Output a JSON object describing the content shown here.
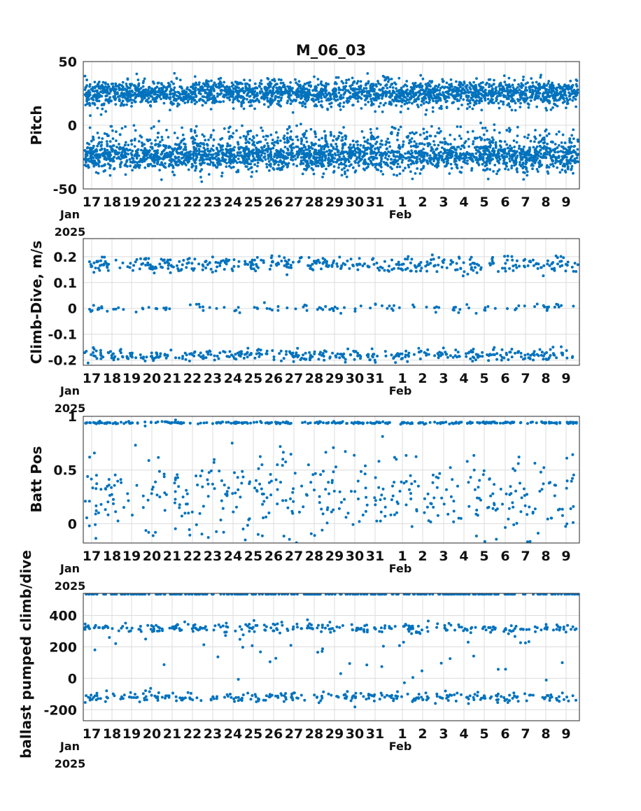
{
  "title": "M_06_03",
  "colors": {
    "marker": "#0072BD",
    "grid": "#dcdcdc",
    "axis": "#262626"
  },
  "chart_data": [
    {
      "type": "scatter",
      "ylabel": "Pitch",
      "ylim": [
        -50,
        50
      ],
      "yticks": [
        50,
        0,
        -50
      ],
      "x_range_days": [
        "2025-01-16 12:00",
        "2025-02-09 18:00"
      ],
      "xticks": [
        "17",
        "18",
        "19",
        "20",
        "21",
        "22",
        "23",
        "24",
        "25",
        "26",
        "27",
        "28",
        "29",
        "30",
        "31",
        "1",
        "2",
        "3",
        "4",
        "5",
        "6",
        "7",
        "8",
        "9"
      ],
      "x_secondary": {
        "Jan": "Jan",
        "Feb": "Feb",
        "year": "2025"
      },
      "grid": true,
      "series": [
        {
          "values_description_clusters": [
            {
              "center": 25,
              "spread": 5,
              "n": 2400
            },
            {
              "center": -24,
              "spread": 6,
              "n": 2400
            },
            {
              "center": -8,
              "spread": 4,
              "n": 250
            }
          ]
        }
      ]
    },
    {
      "type": "scatter",
      "ylabel": "Climb-Dive, m/s",
      "ylim": [
        -0.22,
        0.27
      ],
      "yticks": [
        0.2,
        0.1,
        0,
        -0.1,
        -0.2
      ],
      "grid": true,
      "series": [
        {
          "values_description_clusters": [
            {
              "center": 0.17,
              "spread": 0.015,
              "n": 400
            },
            {
              "center": 0.0,
              "spread": 0.008,
              "n": 120
            },
            {
              "center": -0.18,
              "spread": 0.012,
              "n": 380
            }
          ]
        }
      ]
    },
    {
      "type": "scatter",
      "ylabel": "Batt Pos",
      "ylim": [
        -0.18,
        1.0
      ],
      "yticks": [
        1,
        0.5,
        0
      ],
      "grid": true,
      "series": [
        {
          "values_description_clusters": [
            {
              "center": 0.94,
              "spread": 0.005,
              "n": 300
            },
            {
              "center": 0.25,
              "spread": 0.2,
              "n": 420
            }
          ]
        }
      ]
    },
    {
      "type": "scatter",
      "ylabel": "ballast pumped climb/dive",
      "ylim": [
        -270,
        540
      ],
      "yticks": [
        400,
        200,
        0,
        -200
      ],
      "grid": true,
      "series": [
        {
          "values_description_clusters": [
            {
              "center": 535,
              "spread": 0,
              "n": 300
            },
            {
              "center": 320,
              "spread": 15,
              "n": 280
            },
            {
              "center": -120,
              "spread": 15,
              "n": 280
            },
            {
              "center": 100,
              "spread": 140,
              "n": 50
            }
          ]
        }
      ]
    }
  ]
}
